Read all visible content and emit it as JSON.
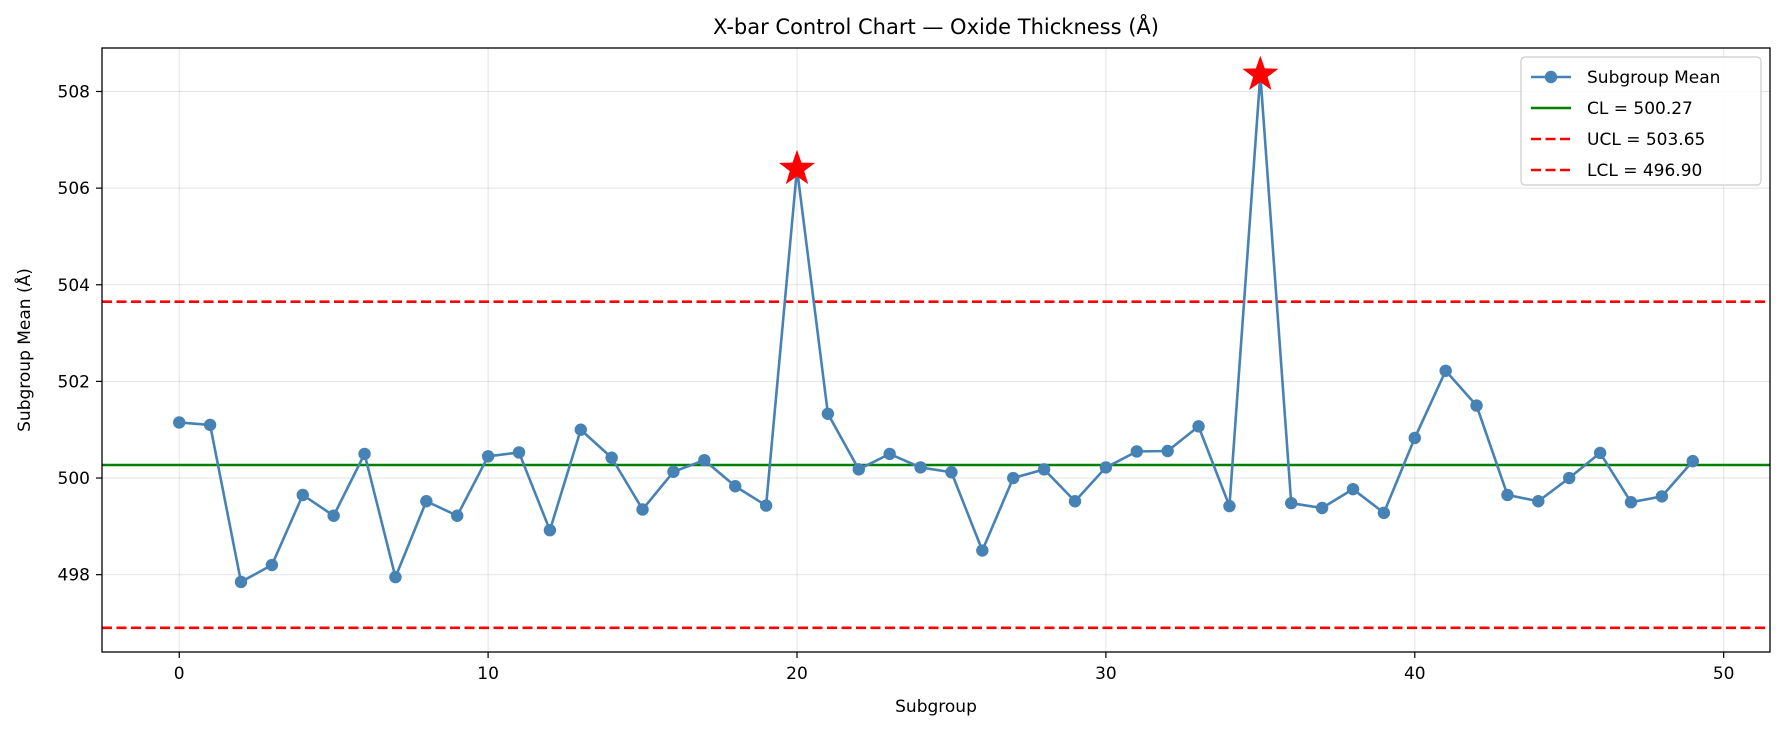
{
  "chart_data": {
    "type": "line",
    "title": "X-bar Control Chart — Oxide Thickness (Å)",
    "xlabel": "Subgroup",
    "ylabel": "Subgroup Mean (Å)",
    "xlim": [
      -2.5,
      51.5
    ],
    "ylim": [
      496.4,
      508.9
    ],
    "xticks": [
      0,
      10,
      20,
      30,
      40,
      50
    ],
    "yticks": [
      498,
      500,
      502,
      504,
      506,
      508
    ],
    "grid": true,
    "legend_position": "top-right",
    "series": [
      {
        "name": "Subgroup Mean",
        "color": "#4682b4",
        "marker": "circle",
        "x": [
          0,
          1,
          2,
          3,
          4,
          5,
          6,
          7,
          8,
          9,
          10,
          11,
          12,
          13,
          14,
          15,
          16,
          17,
          18,
          19,
          20,
          21,
          22,
          23,
          24,
          25,
          26,
          27,
          28,
          29,
          30,
          31,
          32,
          33,
          34,
          35,
          36,
          37,
          38,
          39,
          40,
          41,
          42,
          43,
          44,
          45,
          46,
          47,
          48,
          49
        ],
        "y": [
          501.15,
          501.1,
          497.85,
          498.2,
          499.65,
          499.22,
          500.5,
          497.95,
          499.52,
          499.22,
          500.45,
          500.53,
          498.92,
          501.0,
          500.42,
          499.35,
          500.13,
          500.37,
          499.83,
          499.43,
          506.4,
          501.33,
          500.18,
          500.5,
          500.22,
          500.12,
          498.5,
          500.0,
          500.18,
          499.52,
          500.22,
          500.55,
          500.56,
          501.07,
          499.42,
          508.35,
          499.48,
          499.38,
          499.77,
          499.28,
          500.83,
          502.22,
          501.5,
          499.65,
          499.52,
          500.0,
          500.52,
          499.5,
          499.62,
          500.35
        ]
      },
      {
        "name": "CL = 500.27",
        "kind": "hline",
        "value": 500.27,
        "color": "#008000",
        "style": "solid"
      },
      {
        "name": "UCL = 503.65",
        "kind": "hline",
        "value": 503.65,
        "color": "#ff0000",
        "style": "dashed"
      },
      {
        "name": "LCL = 496.90",
        "kind": "hline",
        "value": 496.9,
        "color": "#ff0000",
        "style": "dashed"
      }
    ],
    "out_of_control": {
      "marker": "star",
      "color": "#ff0000",
      "points": [
        {
          "x": 20,
          "y": 506.4
        },
        {
          "x": 35,
          "y": 508.35
        }
      ]
    }
  }
}
